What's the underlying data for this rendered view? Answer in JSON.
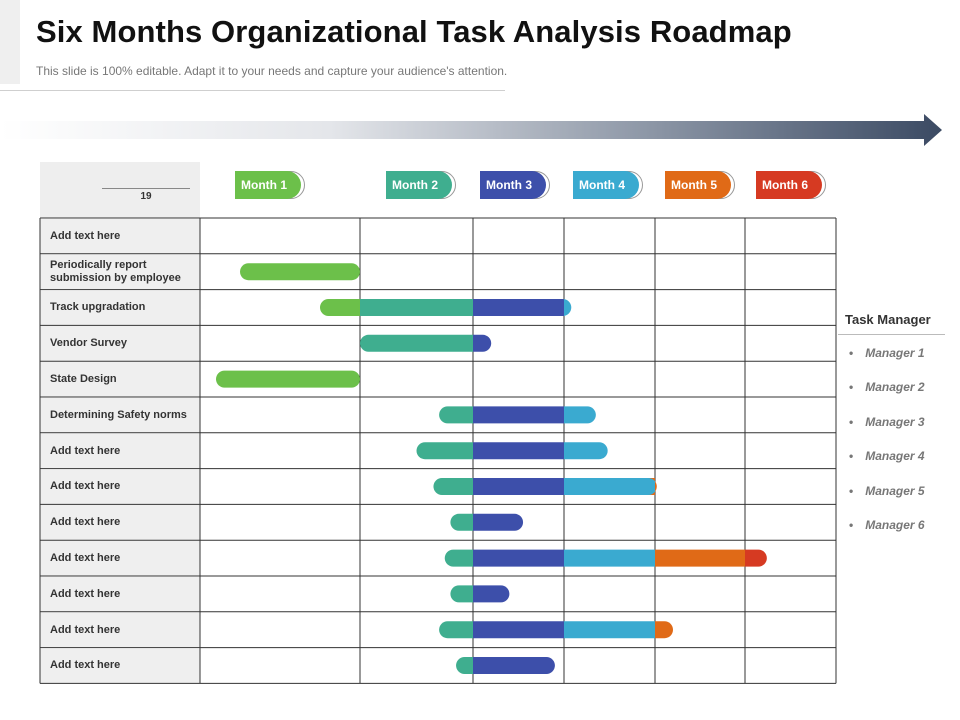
{
  "header": {
    "title": "Six Months Organizational Task Analysis Roadmap",
    "subtitle": "This slide is 100% editable. Adapt it to your needs and capture your audience's attention."
  },
  "corner": {
    "value": "19"
  },
  "colors": {
    "month1": "#6cc04a",
    "month2": "#3fae8f",
    "month3": "#3d4faa",
    "month4": "#3aaad0",
    "month5": "#e06a17",
    "month6": "#d63a22",
    "arrow_dark": "#3b4a63"
  },
  "months": [
    "Month 1",
    "Month 2",
    "Month 3",
    "Month 4",
    "Month 5",
    "Month 6"
  ],
  "tasks": [
    {
      "label": "Add text here",
      "start": null,
      "end": null
    },
    {
      "label": "Periodically report submission by employee",
      "start": 0.25,
      "end": 1.0
    },
    {
      "label": "Track upgradation",
      "start": 0.75,
      "end": 3.08
    },
    {
      "label": "Vendor Survey",
      "start": 1.0,
      "end": 2.2
    },
    {
      "label": "State Design",
      "start": 0.1,
      "end": 1.0
    },
    {
      "label": "Determining Safety norms",
      "start": 0.7,
      "end": 3.35
    },
    {
      "label": "Add text here",
      "start": 0.5,
      "end": 3.48
    },
    {
      "label": "Add text here",
      "start": 0.65,
      "end": 4.02
    },
    {
      "label": "Add text here",
      "start": 0.8,
      "end": 2.55
    },
    {
      "label": "Add text here",
      "start": 0.75,
      "end": 5.24
    },
    {
      "label": "Add text here",
      "start": 0.8,
      "end": 2.4
    },
    {
      "label": "Add text here",
      "start": 0.7,
      "end": 4.2
    },
    {
      "label": "Add text here",
      "start": 0.85,
      "end": 2.9
    }
  ],
  "task_manager": {
    "title": "Task Manager",
    "items": [
      "Manager 1",
      "Manager 2",
      "Manager 3",
      "Manager 4",
      "Manager 5",
      "Manager 6"
    ]
  }
}
